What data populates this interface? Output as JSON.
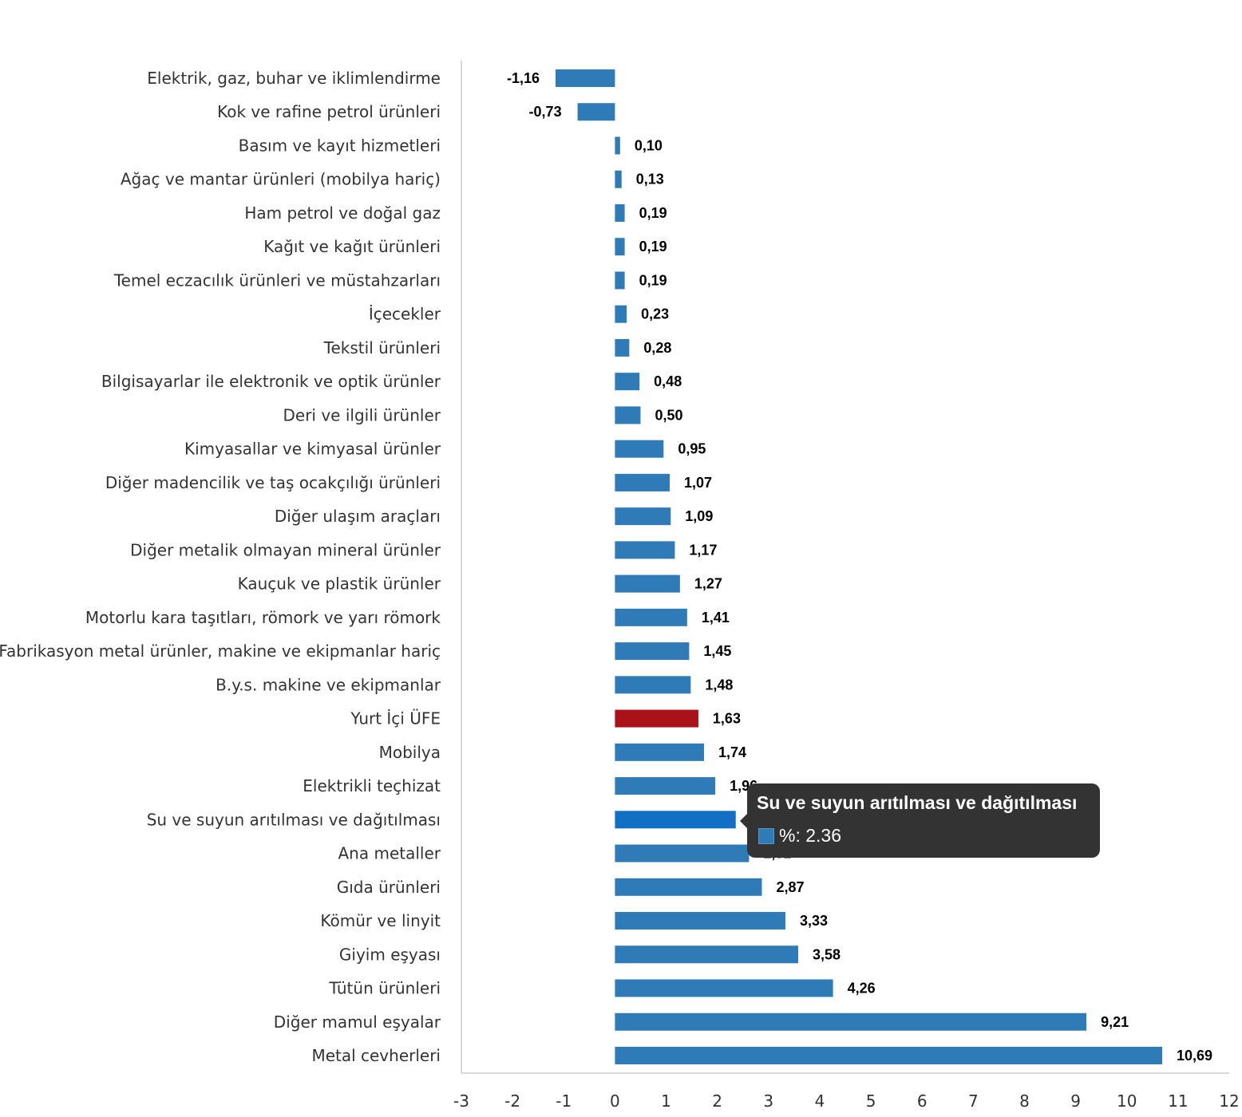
{
  "chart_data": {
    "type": "bar",
    "orientation": "horizontal",
    "categories": [
      "Elektrik, gaz, buhar ve iklimlendirme",
      "Kok ve rafine petrol ürünleri",
      "Basım ve kayıt hizmetleri",
      "Ağaç ve mantar ürünleri (mobilya hariç)",
      "Ham petrol ve doğal gaz",
      "Kağıt ve kağıt ürünleri",
      "Temel eczacılık ürünleri ve müstahzarları",
      "İçecekler",
      "Tekstil ürünleri",
      "Bilgisayarlar ile elektronik ve optik ürünler",
      "Deri ve ilgili ürünler",
      "Kimyasallar ve kimyasal ürünler",
      "Diğer madencilik ve taş ocakçılığı ürünleri",
      "Diğer ulaşım araçları",
      "Diğer metalik olmayan mineral ürünler",
      "Kauçuk ve plastik ürünler",
      "Motorlu kara taşıtları, römork ve yarı römork",
      "Fabrikasyon metal ürünler, makine ve ekipmanlar hariç",
      "B.y.s. makine ve ekipmanlar",
      "Yurt İçi ÜFE",
      "Mobilya",
      "Elektrikli teçhizat",
      "Su ve suyun arıtılması ve dağıtılması",
      "Ana metaller",
      "Gıda ürünleri",
      "Kömür ve linyit",
      "Giyim eşyası",
      "Tütün ürünleri",
      "Diğer mamul eşyalar",
      "Metal cevherleri"
    ],
    "values": [
      -1.16,
      -0.73,
      0.1,
      0.13,
      0.19,
      0.19,
      0.19,
      0.23,
      0.28,
      0.48,
      0.5,
      0.95,
      1.07,
      1.09,
      1.17,
      1.27,
      1.41,
      1.45,
      1.48,
      1.63,
      1.74,
      1.96,
      2.36,
      2.62,
      2.87,
      3.33,
      3.58,
      4.26,
      9.21,
      10.69
    ],
    "value_labels": [
      "-1,16",
      "-0,73",
      "0,10",
      "0,13",
      "0,19",
      "0,19",
      "0,19",
      "0,23",
      "0,28",
      "0,48",
      "0,50",
      "0,95",
      "1,07",
      "1,09",
      "1,17",
      "1,27",
      "1,41",
      "1,45",
      "1,48",
      "1,63",
      "1,74",
      "1,96",
      "2,36",
      "2,62",
      "2,87",
      "3,33",
      "3,58",
      "4,26",
      "9,21",
      "10,69"
    ],
    "xlim": [
      -3,
      12
    ],
    "xticks": [
      "-3",
      "-2",
      "-1",
      "0",
      "1",
      "2",
      "3",
      "4",
      "5",
      "6",
      "7",
      "8",
      "9",
      "10",
      "11",
      "12"
    ],
    "highlight_index": 19,
    "hover_index": 22,
    "title": "",
    "xlabel": "",
    "ylabel": "",
    "grid": false,
    "colors": {
      "bar": "#2e7bb8",
      "highlight": "#ab1118",
      "hover": "#1170c4"
    }
  },
  "tooltip": {
    "title": "Su ve suyun arıtılması ve dağıtılması",
    "row": "%: 2.36"
  }
}
